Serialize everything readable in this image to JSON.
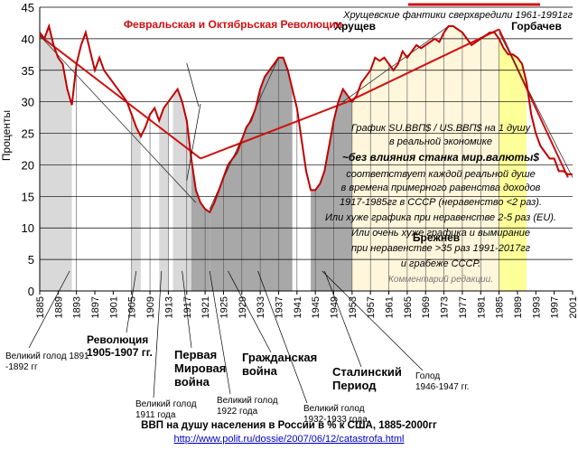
{
  "chart_data": {
    "type": "line",
    "title": "ВВП на душу населения в России в % к США, 1885-2000гг",
    "source_link": "http://www.polit.ru/dossie/2007/06/12/catastrofa.html",
    "ylabel": "Проценты",
    "xlabel": "",
    "ylim": [
      0,
      45
    ],
    "xlim": [
      1885,
      2001
    ],
    "y_ticks": [
      0,
      5,
      10,
      15,
      20,
      25,
      30,
      35,
      40,
      45
    ],
    "x_ticks": [
      1885,
      1889,
      1893,
      1897,
      1901,
      1905,
      1909,
      1913,
      1917,
      1921,
      1925,
      1929,
      1933,
      1937,
      1941,
      1945,
      1949,
      1953,
      1957,
      1961,
      1965,
      1969,
      1973,
      1977,
      1981,
      1985,
      1989,
      1993,
      1997,
      2001
    ],
    "grid": "horizontal",
    "series": [
      {
        "values": [
          [
            1885,
            41
          ],
          [
            1886,
            40
          ],
          [
            1887,
            42
          ],
          [
            1888,
            39
          ],
          [
            1889,
            37
          ],
          [
            1890,
            36
          ],
          [
            1891,
            32
          ],
          [
            1892,
            29.5
          ],
          [
            1893,
            36
          ],
          [
            1894,
            39
          ],
          [
            1895,
            41
          ],
          [
            1896,
            38
          ],
          [
            1897,
            35
          ],
          [
            1898,
            37
          ],
          [
            1899,
            35
          ],
          [
            1900,
            34
          ],
          [
            1901,
            33
          ],
          [
            1902,
            32
          ],
          [
            1903,
            31
          ],
          [
            1904,
            30
          ],
          [
            1905,
            28
          ],
          [
            1906,
            26
          ],
          [
            1907,
            24.5
          ],
          [
            1908,
            26
          ],
          [
            1909,
            28
          ],
          [
            1910,
            29
          ],
          [
            1911,
            27
          ],
          [
            1912,
            29
          ],
          [
            1913,
            30
          ],
          [
            1914,
            31
          ],
          [
            1915,
            32
          ],
          [
            1916,
            30
          ],
          [
            1917,
            27
          ],
          [
            1918,
            21
          ],
          [
            1919,
            16
          ],
          [
            1920,
            14
          ],
          [
            1921,
            13
          ],
          [
            1922,
            12.5
          ],
          [
            1923,
            14
          ],
          [
            1924,
            16
          ],
          [
            1925,
            18
          ],
          [
            1926,
            20
          ],
          [
            1927,
            21
          ],
          [
            1928,
            22
          ],
          [
            1929,
            24
          ],
          [
            1930,
            26
          ],
          [
            1931,
            27
          ],
          [
            1932,
            29
          ],
          [
            1933,
            32
          ],
          [
            1934,
            34
          ],
          [
            1935,
            35
          ],
          [
            1936,
            36
          ],
          [
            1937,
            37
          ],
          [
            1938,
            37
          ],
          [
            1939,
            35
          ],
          [
            1940,
            32
          ],
          [
            1941,
            29
          ],
          [
            1942,
            24
          ],
          [
            1943,
            19
          ],
          [
            1944,
            16
          ],
          [
            1945,
            16
          ],
          [
            1946,
            17
          ],
          [
            1947,
            19
          ],
          [
            1948,
            23
          ],
          [
            1949,
            27
          ],
          [
            1950,
            30
          ],
          [
            1951,
            32
          ],
          [
            1952,
            31
          ],
          [
            1953,
            30
          ],
          [
            1954,
            31
          ],
          [
            1955,
            33
          ],
          [
            1956,
            34
          ],
          [
            1957,
            35
          ],
          [
            1958,
            37
          ],
          [
            1959,
            36.5
          ],
          [
            1960,
            37
          ],
          [
            1961,
            36
          ],
          [
            1962,
            35
          ],
          [
            1963,
            36
          ],
          [
            1964,
            38
          ],
          [
            1965,
            37
          ],
          [
            1966,
            38
          ],
          [
            1967,
            39
          ],
          [
            1968,
            38.5
          ],
          [
            1969,
            39
          ],
          [
            1970,
            39.5
          ],
          [
            1971,
            40
          ],
          [
            1972,
            39.5
          ],
          [
            1973,
            41
          ],
          [
            1974,
            42
          ],
          [
            1975,
            42
          ],
          [
            1976,
            41.5
          ],
          [
            1977,
            41
          ],
          [
            1978,
            40
          ],
          [
            1979,
            39
          ],
          [
            1980,
            39.5
          ],
          [
            1981,
            40
          ],
          [
            1982,
            40.5
          ],
          [
            1983,
            41
          ],
          [
            1984,
            41
          ],
          [
            1985,
            40
          ],
          [
            1986,
            38.5
          ],
          [
            1987,
            37.5
          ],
          [
            1988,
            37.5
          ],
          [
            1989,
            37
          ],
          [
            1990,
            36
          ],
          [
            1991,
            33
          ],
          [
            1992,
            28
          ],
          [
            1993,
            25
          ],
          [
            1994,
            23
          ],
          [
            1995,
            22
          ],
          [
            1996,
            21
          ],
          [
            1997,
            21
          ],
          [
            1998,
            19
          ],
          [
            1999,
            19
          ],
          [
            2000,
            18.5
          ],
          [
            2001,
            18.5
          ]
        ]
      }
    ],
    "trend_segments": [
      [
        [
          1885,
          40.5
        ],
        [
          1920,
          21
        ]
      ],
      [
        [
          1920,
          21
        ],
        [
          1952,
          30
        ]
      ],
      [
        [
          1952,
          30
        ],
        [
          1985,
          41.5
        ]
      ],
      [
        [
          1985,
          41.5
        ],
        [
          2000,
          18
        ]
      ]
    ],
    "shaded_periods": [
      {
        "from": 1885,
        "to": 1892
      },
      {
        "from": 1905,
        "to": 1907
      },
      {
        "from": 1911,
        "to": 1913
      },
      {
        "from": 1914,
        "to": 1918
      },
      {
        "from": 1918,
        "to": 1922
      },
      {
        "from": 1922,
        "to": 1940
      },
      {
        "from": 1944,
        "to": 1953
      },
      {
        "from": 1953,
        "to": 1985
      },
      {
        "from": 1985,
        "to": 1991
      }
    ],
    "annotations": [
      "Февральская и Октябрьская Революции",
      "Хрущевские фантики сверхвредили 1961-1991гг",
      "Хрущев",
      "Горбачев",
      "Брежнев",
      "График SU.ВВП$ / US.ВВП$ на 1 душу",
      "в реальной экономике",
      "~без влияния станка мир.валюты$",
      "соответствует каждой реальной душе",
      "в времена примерного равенства доходов",
      "1917-1985гг в СССР (неравенство <2 раз).",
      "Или хуже графика при неравенстве 2-5 раз (EU).",
      "Или очень хуже графика и вымирание",
      "при неравенстве >35 раз 1991-2017гг",
      "и грабеже СССР.",
      "Комментарий редакции.",
      "Великий голод 1891 -1892 гг",
      "Революция 1905-1907 гг.",
      "Великий голод 1911 года",
      "Первая Мировая война",
      "Великий голод 1922 года",
      "Гражданская война",
      "Великий голод 1932-1933 года",
      "Сталинский Период",
      "Голод 1946-1947 гг."
    ],
    "colors": {
      "line": "#c00000",
      "trend": "#d01010",
      "light_shade": "#d9d9d9",
      "dark_shade": "#a8a8a8",
      "cream_shade": "#fff6dc",
      "yellow_shade": "#ffff99",
      "red_text": "#d01010"
    }
  }
}
